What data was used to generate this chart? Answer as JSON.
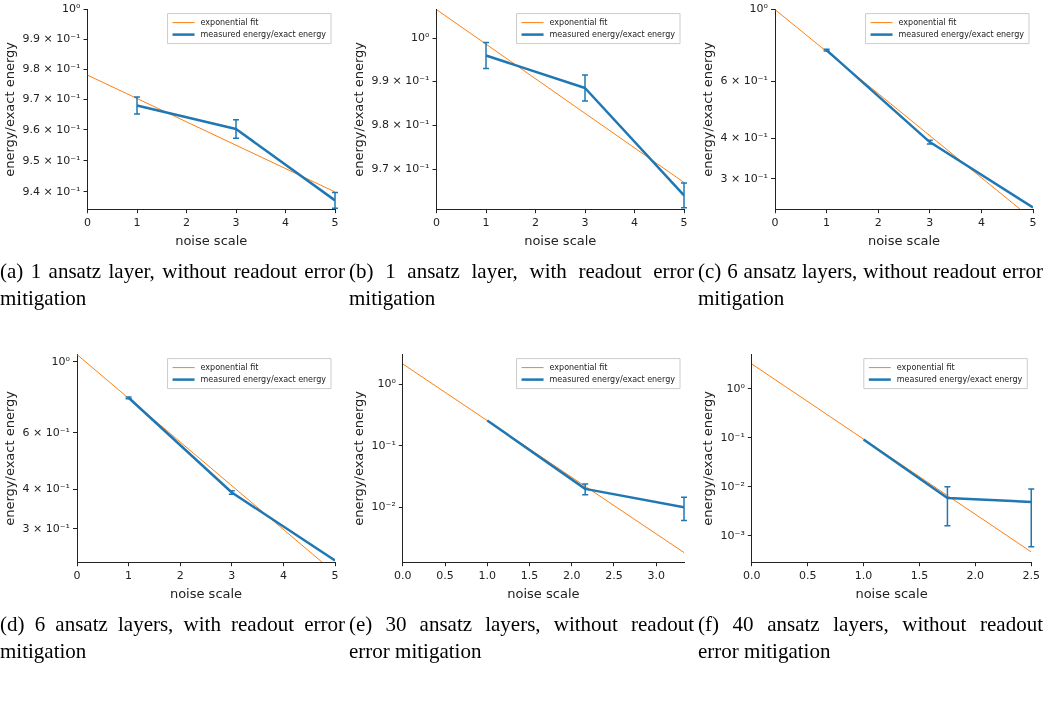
{
  "chart_data": [
    {
      "type": "line",
      "xlabel": "noise scale",
      "ylabel": "energy/exact energy",
      "log": "y",
      "grid": false,
      "legend": "top right",
      "marker": "none",
      "line_style": "solid",
      "annotations": [
        "(a) 1 ansatz layer, without readout error mitigation"
      ],
      "xlim": [
        0,
        5
      ],
      "xticks": [
        0,
        1,
        2,
        3,
        4,
        5
      ],
      "ylim": [
        0.9345,
        1.0
      ],
      "yticks": [
        {
          "value": 0.94,
          "label": "9.4 × 10⁻¹"
        },
        {
          "value": 0.95,
          "label": "9.5 × 10⁻¹"
        },
        {
          "value": 0.96,
          "label": "9.6 × 10⁻¹"
        },
        {
          "value": 0.97,
          "label": "9.7 × 10⁻¹"
        },
        {
          "value": 0.98,
          "label": "9.8 × 10⁻¹"
        },
        {
          "value": 0.99,
          "label": "9.9 × 10⁻¹"
        },
        {
          "value": 1.0,
          "label": "10⁰"
        }
      ],
      "series": [
        {
          "name": "exponential fit",
          "color": "#ff7f0e",
          "x": [
            0,
            5
          ],
          "values": [
            0.978,
            0.94
          ]
        },
        {
          "name": "measured energy/exact energy",
          "color": "#1f77b4",
          "x": [
            1,
            3,
            5
          ],
          "values": [
            0.968,
            0.9603,
            0.9373
          ],
          "errors": [
            0.0028,
            0.003,
            0.0025
          ]
        }
      ]
    },
    {
      "type": "line",
      "xlabel": "noise scale",
      "ylabel": "energy/exact energy",
      "log": "y",
      "grid": false,
      "legend": "top right",
      "marker": "none",
      "line_style": "solid",
      "annotations": [
        "(b) 1 ansatz layer, with readout error mitigation"
      ],
      "xlim": [
        0,
        5
      ],
      "xticks": [
        0,
        1,
        2,
        3,
        4,
        5
      ],
      "ylim": [
        0.9611,
        1.0067
      ],
      "yticks": [
        {
          "value": 0.97,
          "label": "9.7 × 10⁻¹"
        },
        {
          "value": 0.98,
          "label": "9.8 × 10⁻¹"
        },
        {
          "value": 0.99,
          "label": "9.9 × 10⁻¹"
        },
        {
          "value": 1.0,
          "label": "10⁰"
        }
      ],
      "series": [
        {
          "name": "exponential fit",
          "color": "#ff7f0e",
          "x": [
            0,
            5
          ],
          "values": [
            1.0067,
            0.967
          ]
        },
        {
          "name": "measured energy/exact energy",
          "color": "#1f77b4",
          "x": [
            1,
            3,
            5
          ],
          "values": [
            0.996,
            0.9885,
            0.9641
          ],
          "errors": [
            0.003,
            0.003,
            0.0028
          ]
        }
      ]
    },
    {
      "type": "line",
      "xlabel": "noise scale",
      "ylabel": "energy/exact energy",
      "log": "y",
      "grid": false,
      "legend": "top right",
      "marker": "none",
      "line_style": "solid",
      "annotations": [
        "(c) 6 ansatz layers, without readout error mitigation"
      ],
      "xlim": [
        0,
        5
      ],
      "xticks": [
        0,
        1,
        2,
        3,
        4,
        5
      ],
      "ylim": [
        0.242,
        1.0
      ],
      "yticks": [
        {
          "value": 0.3,
          "label": "3 × 10⁻¹"
        },
        {
          "value": 0.4,
          "label": "4 × 10⁻¹"
        },
        {
          "value": 0.6,
          "label": "6 × 10⁻¹"
        },
        {
          "value": 1.0,
          "label": "10⁰"
        }
      ],
      "series": [
        {
          "name": "exponential fit",
          "color": "#ff7f0e",
          "x": [
            0,
            4.75
          ],
          "values": [
            1.0,
            0.242
          ]
        },
        {
          "name": "measured energy/exact energy",
          "color": "#1f77b4",
          "x": [
            1,
            3,
            5
          ],
          "values": [
            0.75,
            0.39,
            0.245
          ],
          "errors": [
            0.005,
            0.005,
            null
          ]
        }
      ]
    },
    {
      "type": "line",
      "xlabel": "noise scale",
      "ylabel": "energy/exact energy",
      "log": "y",
      "grid": false,
      "legend": "top right",
      "marker": "none",
      "line_style": "solid",
      "annotations": [
        "(d) 6 ansatz layers, with readout error mitigation"
      ],
      "xlim": [
        0,
        5
      ],
      "xticks": [
        0,
        1,
        2,
        3,
        4,
        5
      ],
      "ylim": [
        0.236,
        1.054
      ],
      "yticks": [
        {
          "value": 0.3,
          "label": "3 × 10⁻¹"
        },
        {
          "value": 0.4,
          "label": "4 × 10⁻¹"
        },
        {
          "value": 0.6,
          "label": "6 × 10⁻¹"
        },
        {
          "value": 1.0,
          "label": "10⁰"
        }
      ],
      "series": [
        {
          "name": "exponential fit",
          "color": "#ff7f0e",
          "x": [
            0,
            4.75
          ],
          "values": [
            1.054,
            0.236
          ]
        },
        {
          "name": "measured energy/exact energy",
          "color": "#1f77b4",
          "x": [
            1,
            3,
            5
          ],
          "values": [
            0.772,
            0.39,
            0.239
          ],
          "errors": [
            0.005,
            0.005,
            null
          ]
        }
      ]
    },
    {
      "type": "line",
      "xlabel": "noise scale",
      "ylabel": "energy/exact energy",
      "log": "y",
      "grid": false,
      "legend": "top right",
      "marker": "none",
      "line_style": "solid",
      "annotations": [
        "(e) 30 ansatz layers, without readout error mitigation"
      ],
      "xlim": [
        0,
        3.33
      ],
      "xticks": [
        {
          "value": 0,
          "label": "0.0"
        },
        {
          "value": 0.5,
          "label": "0.5"
        },
        {
          "value": 1,
          "label": "1.0"
        },
        {
          "value": 1.5,
          "label": "1.5"
        },
        {
          "value": 2,
          "label": "2.0"
        },
        {
          "value": 2.5,
          "label": "2.5"
        },
        {
          "value": 3,
          "label": "3.0"
        }
      ],
      "ylim": [
        0.00128,
        3.07
      ],
      "yticks": [
        {
          "value": 0.01,
          "label": "10⁻²"
        },
        {
          "value": 0.1,
          "label": "10⁻¹"
        },
        {
          "value": 1,
          "label": "10⁰"
        }
      ],
      "series": [
        {
          "name": "exponential fit",
          "color": "#ff7f0e",
          "x": [
            0,
            3.33
          ],
          "values": [
            2.16,
            0.00184
          ]
        },
        {
          "name": "measured energy/exact energy",
          "color": "#1f77b4",
          "x": [
            1,
            2.16,
            3.33
          ],
          "values": [
            0.26,
            0.02,
            0.01
          ],
          "errors": [
            null,
            [
              0.016,
              0.024
            ],
            [
              0.0061,
              0.0146
            ]
          ]
        }
      ]
    },
    {
      "type": "line",
      "xlabel": "noise scale",
      "ylabel": "energy/exact energy",
      "log": "y",
      "grid": false,
      "legend": "top right",
      "marker": "none",
      "line_style": "solid",
      "annotations": [
        "(f) 40 ansatz layers, without readout error mitigation"
      ],
      "xlim": [
        0,
        2.5
      ],
      "xticks": [
        {
          "value": 0,
          "label": "0.0"
        },
        {
          "value": 0.5,
          "label": "0.5"
        },
        {
          "value": 1,
          "label": "1.0"
        },
        {
          "value": 1.5,
          "label": "1.5"
        },
        {
          "value": 2,
          "label": "2.0"
        },
        {
          "value": 2.5,
          "label": "2.5"
        }
      ],
      "ylim": [
        0.00029,
        4.97
      ],
      "yticks": [
        {
          "value": 0.001,
          "label": "10⁻³"
        },
        {
          "value": 0.01,
          "label": "10⁻²"
        },
        {
          "value": 0.1,
          "label": "10⁻¹"
        },
        {
          "value": 1,
          "label": "10⁰"
        }
      ],
      "series": [
        {
          "name": "exponential fit",
          "color": "#ff7f0e",
          "x": [
            0,
            2.5
          ],
          "values": [
            3.2,
            0.00047
          ]
        },
        {
          "name": "measured energy/exact energy",
          "color": "#1f77b4",
          "x": [
            1,
            1.75,
            2.5
          ],
          "values": [
            0.092,
            0.0059,
            0.0049
          ],
          "errors": [
            null,
            [
              0.0016,
              0.01
            ],
            [
              0.0006,
              0.009
            ]
          ]
        }
      ]
    }
  ]
}
